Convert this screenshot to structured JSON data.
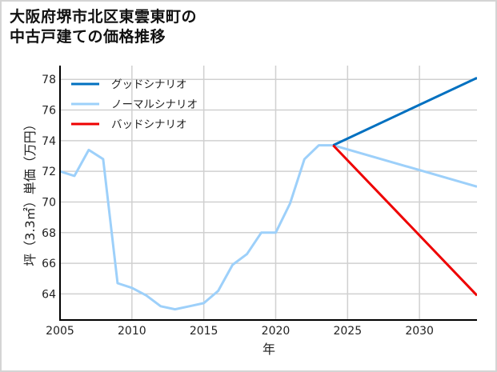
{
  "title": {
    "line1": "大阪府堺市北区東雲東町の",
    "line2": "中古戸建ての価格推移"
  },
  "colors": {
    "good": "#0070c0",
    "normal": "#9dd0fa",
    "bad": "#ee0000",
    "grid": "#d0d0d0",
    "axis": "#000000",
    "border": "#d4d4d4"
  },
  "legend": [
    {
      "label": "グッドシナリオ",
      "color": "#0070c0"
    },
    {
      "label": "ノーマルシナリオ",
      "color": "#9dd0fa"
    },
    {
      "label": "バッドシナリオ",
      "color": "#ee0000"
    }
  ],
  "axes": {
    "xlabel": "年",
    "ylabel": "坪（3.3㎡）単価（万円）",
    "xticks": [
      "2005",
      "2010",
      "2015",
      "2020",
      "2025",
      "2030"
    ],
    "yticks": [
      "64",
      "66",
      "68",
      "70",
      "72",
      "74",
      "76",
      "78"
    ]
  },
  "chart_data": {
    "type": "line",
    "title": "大阪府堺市北区東雲東町の中古戸建ての価格推移",
    "xlabel": "年",
    "ylabel": "坪（3.3㎡）単価（万円）",
    "xlim": [
      2005,
      2034
    ],
    "ylim": [
      62.3,
      78.9
    ],
    "grid": true,
    "legend_position": "upper left",
    "series": [
      {
        "name": "ノーマルシナリオ",
        "color": "#9dd0fa",
        "x": [
          2005,
          2006,
          2007,
          2008,
          2009,
          2010,
          2011,
          2012,
          2013,
          2014,
          2015,
          2016,
          2017,
          2018,
          2019,
          2020,
          2021,
          2022,
          2023,
          2024,
          2034
        ],
        "values": [
          72.0,
          71.7,
          73.4,
          72.8,
          64.7,
          64.4,
          63.9,
          63.2,
          63.0,
          63.2,
          63.4,
          64.2,
          65.9,
          66.6,
          68.0,
          68.0,
          69.9,
          72.8,
          73.7,
          73.7,
          71.0
        ]
      },
      {
        "name": "グッドシナリオ",
        "color": "#0070c0",
        "x": [
          2024,
          2034
        ],
        "values": [
          73.7,
          78.1
        ]
      },
      {
        "name": "バッドシナリオ",
        "color": "#ee0000",
        "x": [
          2024,
          2034
        ],
        "values": [
          73.7,
          63.9
        ]
      }
    ]
  }
}
